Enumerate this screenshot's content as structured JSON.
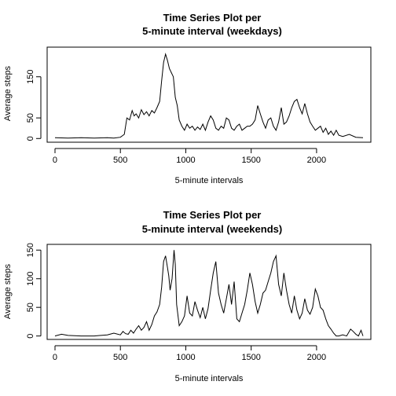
{
  "chart_data": [
    {
      "type": "line",
      "title_lines": [
        "Time Series Plot per",
        "5-minute interval (weekdays)"
      ],
      "xlabel": "5-minute intervals",
      "ylabel": "Average steps",
      "xlim": [
        -60,
        2415
      ],
      "ylim": [
        -9,
        222
      ],
      "xticks": [
        0,
        500,
        1000,
        1500,
        2000
      ],
      "yticks": [
        0,
        50,
        150
      ],
      "grid": false,
      "legend": "none",
      "series": [
        {
          "x": [
            0,
            100,
            200,
            300,
            400,
            450,
            500,
            530,
            550,
            570,
            590,
            605,
            620,
            640,
            660,
            680,
            700,
            720,
            740,
            760,
            780,
            800,
            815,
            830,
            845,
            860,
            875,
            890,
            905,
            920,
            935,
            950,
            970,
            990,
            1010,
            1030,
            1050,
            1070,
            1090,
            1110,
            1130,
            1150,
            1170,
            1190,
            1210,
            1230,
            1250,
            1270,
            1290,
            1310,
            1330,
            1350,
            1370,
            1390,
            1410,
            1430,
            1450,
            1470,
            1490,
            1510,
            1530,
            1550,
            1570,
            1590,
            1610,
            1630,
            1650,
            1670,
            1690,
            1710,
            1730,
            1750,
            1770,
            1790,
            1810,
            1830,
            1850,
            1870,
            1890,
            1910,
            1930,
            1950,
            1970,
            1990,
            2010,
            2030,
            2050,
            2070,
            2090,
            2110,
            2130,
            2150,
            2170,
            2200,
            2250,
            2300,
            2355
          ],
          "y": [
            2,
            1,
            2,
            1,
            2,
            1,
            3,
            10,
            50,
            45,
            68,
            55,
            60,
            50,
            70,
            58,
            65,
            55,
            68,
            62,
            75,
            90,
            140,
            185,
            205,
            190,
            170,
            160,
            150,
            100,
            80,
            45,
            30,
            20,
            35,
            25,
            30,
            20,
            28,
            22,
            35,
            20,
            40,
            55,
            45,
            25,
            20,
            30,
            25,
            50,
            45,
            25,
            20,
            30,
            35,
            20,
            25,
            30,
            30,
            35,
            45,
            80,
            60,
            40,
            25,
            45,
            50,
            30,
            20,
            40,
            75,
            35,
            40,
            55,
            75,
            90,
            95,
            75,
            60,
            85,
            60,
            40,
            30,
            20,
            25,
            30,
            15,
            25,
            10,
            18,
            8,
            20,
            8,
            5,
            10,
            3,
            2
          ]
        }
      ]
    },
    {
      "type": "line",
      "title_lines": [
        "Time Series Plot per",
        "5-minute interval (weekends)"
      ],
      "xlabel": "5-minute intervals",
      "ylabel": "Average steps",
      "xlim": [
        -60,
        2415
      ],
      "ylim": [
        -6,
        160
      ],
      "xticks": [
        0,
        500,
        1000,
        1500,
        2000
      ],
      "yticks": [
        0,
        50,
        100,
        150
      ],
      "grid": false,
      "legend": "none",
      "series": [
        {
          "x": [
            0,
            50,
            100,
            200,
            300,
            400,
            450,
            500,
            520,
            540,
            560,
            580,
            600,
            620,
            640,
            660,
            680,
            700,
            720,
            740,
            760,
            780,
            800,
            815,
            830,
            845,
            860,
            870,
            880,
            895,
            910,
            920,
            930,
            950,
            970,
            990,
            1010,
            1030,
            1050,
            1070,
            1090,
            1110,
            1130,
            1150,
            1170,
            1190,
            1210,
            1230,
            1250,
            1270,
            1290,
            1310,
            1330,
            1350,
            1370,
            1390,
            1410,
            1430,
            1450,
            1470,
            1490,
            1510,
            1530,
            1550,
            1570,
            1590,
            1610,
            1630,
            1650,
            1670,
            1690,
            1710,
            1730,
            1750,
            1770,
            1790,
            1810,
            1830,
            1850,
            1870,
            1890,
            1910,
            1930,
            1950,
            1970,
            1990,
            2010,
            2030,
            2050,
            2070,
            2090,
            2110,
            2130,
            2150,
            2170,
            2200,
            2230,
            2260,
            2280,
            2300,
            2320,
            2340,
            2355
          ],
          "y": [
            0,
            3,
            1,
            0,
            0,
            2,
            5,
            2,
            8,
            4,
            3,
            10,
            5,
            12,
            18,
            10,
            15,
            25,
            10,
            20,
            35,
            42,
            55,
            85,
            130,
            140,
            120,
            105,
            80,
            100,
            150,
            125,
            55,
            18,
            25,
            35,
            70,
            40,
            35,
            60,
            45,
            32,
            50,
            30,
            48,
            80,
            110,
            130,
            75,
            55,
            40,
            65,
            90,
            55,
            95,
            30,
            25,
            40,
            55,
            80,
            110,
            90,
            60,
            40,
            55,
            75,
            80,
            95,
            110,
            130,
            140,
            90,
            70,
            110,
            80,
            55,
            40,
            70,
            45,
            30,
            40,
            65,
            45,
            38,
            50,
            82,
            70,
            50,
            45,
            30,
            18,
            12,
            5,
            0,
            0,
            2,
            0,
            12,
            8,
            3,
            0,
            10,
            0
          ]
        }
      ]
    }
  ]
}
